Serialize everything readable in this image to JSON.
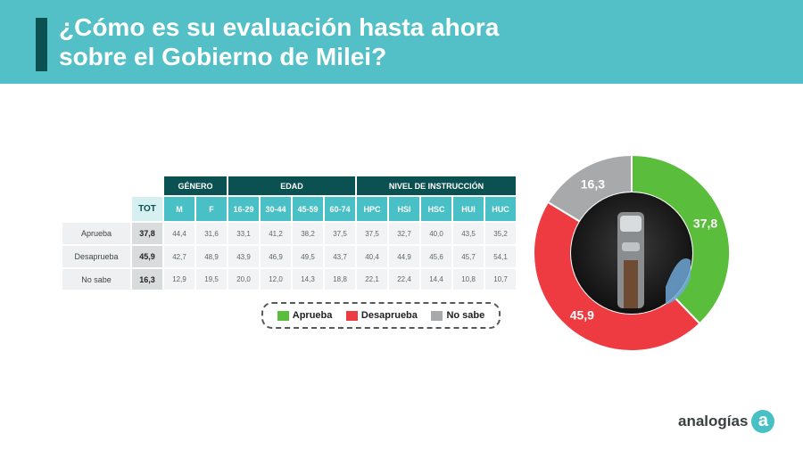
{
  "header": {
    "title_line1": "¿Cómo es su evaluación hasta ahora",
    "title_line2": "sobre el Gobierno de Milei?"
  },
  "table": {
    "groups": {
      "genero": "GÉNERO",
      "edad": "EDAD",
      "nivel": "NIVEL DE INSTRUCCIÓN"
    },
    "columns": [
      "TOT",
      "M",
      "F",
      "16-29",
      "30-44",
      "45-59",
      "60-74",
      "HPC",
      "HSI",
      "HSC",
      "HUI",
      "HUC"
    ],
    "rows": [
      {
        "label": "Aprueba",
        "values": [
          "37,8",
          "44,4",
          "31,6",
          "33,1",
          "41,2",
          "38,2",
          "37,5",
          "37,5",
          "32,7",
          "40,0",
          "43,5",
          "35,2"
        ]
      },
      {
        "label": "Desaprueba",
        "values": [
          "45,9",
          "42,7",
          "48,9",
          "43,9",
          "46,9",
          "49,5",
          "43,7",
          "40,4",
          "44,9",
          "45,6",
          "45,7",
          "54,1"
        ]
      },
      {
        "label": "No sabe",
        "values": [
          "16,3",
          "12,9",
          "19,5",
          "20,0",
          "12,0",
          "14,3",
          "18,8",
          "22,1",
          "22,4",
          "14,4",
          "10,8",
          "10,7"
        ]
      }
    ]
  },
  "legend": [
    {
      "label": "Aprueba",
      "color": "#5bbd3c"
    },
    {
      "label": "Desaprueba",
      "color": "#ee3b41"
    },
    {
      "label": "No sabe",
      "color": "#a7a9ab"
    }
  ],
  "chart_data": {
    "type": "pie",
    "variant": "donut",
    "categories": [
      "Aprueba",
      "Desaprueba",
      "No sabe"
    ],
    "values": [
      37.8,
      45.9,
      16.3
    ],
    "labels": [
      "37,8",
      "45,9",
      "16,3"
    ],
    "colors": [
      "#5bbd3c",
      "#ee3b41",
      "#a7a9ab"
    ],
    "legend_position": "bottom-left"
  },
  "logo": {
    "text": "analogías",
    "mark": "a"
  }
}
